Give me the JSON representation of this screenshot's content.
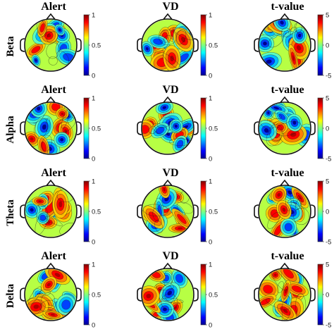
{
  "row_labels": [
    "Beta",
    "Alpha",
    "Theta",
    "Delta"
  ],
  "columns": [
    {
      "title": "Alert",
      "cbar_ticks": [
        "1",
        "0.5",
        "0"
      ]
    },
    {
      "title": "VD",
      "cbar_ticks": [
        "1",
        "0.5",
        "0"
      ]
    },
    {
      "title": "t-value",
      "cbar_ticks": [
        "5",
        "0",
        "-5"
      ]
    }
  ],
  "colormap": [
    "#00008f",
    "#0000ff",
    "#00ffff",
    "#ffff00",
    "#ff0000",
    "#800000"
  ],
  "panels": [
    [
      {
        "seed": 11,
        "hot": 0.62
      },
      {
        "seed": 23,
        "hot": 0.48
      },
      {
        "seed": 37,
        "hot": 0.58
      }
    ],
    [
      {
        "seed": 41,
        "hot": 0.4
      },
      {
        "seed": 53,
        "hot": 0.46
      },
      {
        "seed": 67,
        "hot": 0.5
      }
    ],
    [
      {
        "seed": 71,
        "hot": 0.55
      },
      {
        "seed": 83,
        "hot": 0.6
      },
      {
        "seed": 97,
        "hot": 0.44
      }
    ],
    [
      {
        "seed": 103,
        "hot": 0.64
      },
      {
        "seed": 113,
        "hot": 0.58
      },
      {
        "seed": 127,
        "hot": 0.52
      }
    ]
  ]
}
